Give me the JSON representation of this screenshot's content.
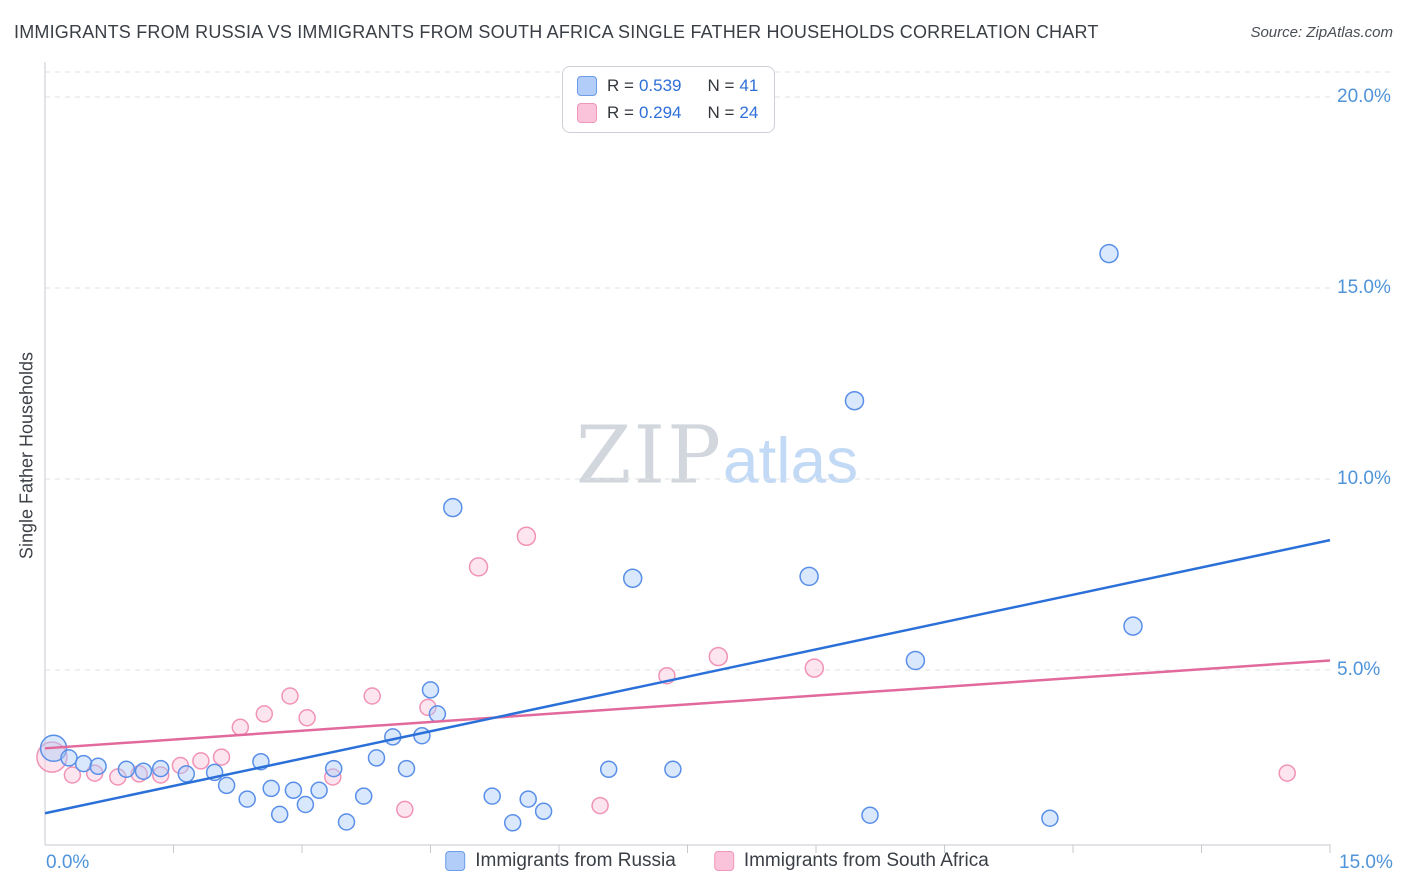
{
  "title": "IMMIGRANTS FROM RUSSIA VS IMMIGRANTS FROM SOUTH AFRICA SINGLE FATHER HOUSEHOLDS CORRELATION CHART",
  "source": "Source: ZipAtlas.com",
  "ylabel": "Single Father Households",
  "watermark": {
    "zip": "ZIP",
    "atlas": "atlas"
  },
  "axes": {
    "y_ticks": [
      "20.0%",
      "15.0%",
      "10.0%",
      "5.0%"
    ],
    "x_min_label": "0.0%",
    "x_max_label": "15.0%"
  },
  "legend_box": {
    "series": [
      {
        "r_label": "R =",
        "r": "0.539",
        "n_label": "N =",
        "n": "41"
      },
      {
        "r_label": "R =",
        "r": "0.294",
        "n_label": "N =",
        "n": "24"
      }
    ]
  },
  "bottom_legend": [
    {
      "label": "Immigrants from Russia"
    },
    {
      "label": "Immigrants from South Africa"
    }
  ],
  "chart_data": {
    "type": "scatter",
    "title": "Immigrants from Russia vs Immigrants from South Africa Single Father Households Correlation Chart",
    "xlabel": "",
    "ylabel": "Single Father Households",
    "x_axis": {
      "min_pct": 0,
      "max_pct": 15,
      "min_label": "0.0%",
      "max_label": "15.0%"
    },
    "y_axis": {
      "min_pct": 0,
      "max_pct": 21,
      "tick_labels": [
        "5.0%",
        "10.0%",
        "15.0%",
        "20.0%"
      ],
      "gridlines_pct": [
        5,
        10,
        15,
        20
      ]
    },
    "grid": "dashed horizontal",
    "legend_position": "bottom-center",
    "series": [
      {
        "name": "Immigrants from Russia",
        "R": "0.539",
        "N": "41",
        "fill": "rgba(170,205,248,0.45)",
        "stroke": "#5a8fe8",
        "trend": {
          "x1_pct": 0,
          "y1_pct": 1.25,
          "x2_pct": 15,
          "y2_pct": 8.4,
          "color": "#2a70d8"
        },
        "points_pct": [
          [
            0.1,
            2.95,
            13
          ],
          [
            0.28,
            2.7,
            8
          ],
          [
            0.45,
            2.55,
            8
          ],
          [
            0.62,
            2.48,
            8
          ],
          [
            0.95,
            2.4,
            8
          ],
          [
            1.15,
            2.35,
            8
          ],
          [
            1.35,
            2.42,
            8
          ],
          [
            1.65,
            2.28,
            8
          ],
          [
            1.98,
            2.32,
            8
          ],
          [
            2.12,
            1.98,
            8
          ],
          [
            2.36,
            1.62,
            8
          ],
          [
            2.52,
            2.6,
            8
          ],
          [
            2.64,
            1.9,
            8
          ],
          [
            2.74,
            1.22,
            8
          ],
          [
            2.9,
            1.85,
            8
          ],
          [
            3.04,
            1.48,
            8
          ],
          [
            3.2,
            1.85,
            8
          ],
          [
            3.37,
            2.42,
            8
          ],
          [
            3.52,
            1.02,
            8
          ],
          [
            3.72,
            1.7,
            8
          ],
          [
            3.87,
            2.7,
            8
          ],
          [
            4.06,
            3.25,
            8
          ],
          [
            4.22,
            2.42,
            8
          ],
          [
            4.4,
            3.28,
            8
          ],
          [
            4.5,
            4.48,
            8
          ],
          [
            4.58,
            3.85,
            8
          ],
          [
            4.76,
            9.25,
            9
          ],
          [
            5.22,
            1.7,
            8
          ],
          [
            5.46,
            1.0,
            8
          ],
          [
            5.64,
            1.62,
            8
          ],
          [
            5.82,
            1.3,
            8
          ],
          [
            6.58,
            2.4,
            8
          ],
          [
            6.86,
            7.4,
            9
          ],
          [
            7.33,
            2.4,
            8
          ],
          [
            8.92,
            7.45,
            9
          ],
          [
            9.45,
            12.05,
            9
          ],
          [
            9.63,
            1.2,
            8
          ],
          [
            10.16,
            5.25,
            9
          ],
          [
            11.73,
            1.12,
            8
          ],
          [
            12.42,
            15.9,
            9
          ],
          [
            12.7,
            6.15,
            9
          ]
        ]
      },
      {
        "name": "Immigrants from South Africa",
        "R": "0.294",
        "N": "24",
        "fill": "rgba(251,198,219,0.45)",
        "stroke": "#f193b6",
        "trend": {
          "x1_pct": 0,
          "y1_pct": 2.95,
          "x2_pct": 15,
          "y2_pct": 5.25,
          "color": "#e2699c"
        },
        "points_pct": [
          [
            0.08,
            2.72,
            15
          ],
          [
            0.32,
            2.25,
            8
          ],
          [
            0.58,
            2.3,
            8
          ],
          [
            0.85,
            2.2,
            8
          ],
          [
            1.1,
            2.28,
            8
          ],
          [
            1.35,
            2.25,
            8
          ],
          [
            1.58,
            2.5,
            8
          ],
          [
            1.82,
            2.62,
            8
          ],
          [
            2.06,
            2.72,
            8
          ],
          [
            2.28,
            3.5,
            8
          ],
          [
            2.56,
            3.85,
            8
          ],
          [
            2.86,
            4.32,
            8
          ],
          [
            3.06,
            3.75,
            8
          ],
          [
            3.36,
            2.2,
            8
          ],
          [
            3.82,
            4.32,
            8
          ],
          [
            4.2,
            1.35,
            8
          ],
          [
            4.47,
            4.02,
            8
          ],
          [
            5.06,
            7.7,
            9
          ],
          [
            5.62,
            8.5,
            9
          ],
          [
            6.48,
            1.45,
            8
          ],
          [
            7.26,
            4.85,
            8
          ],
          [
            7.86,
            5.35,
            9
          ],
          [
            8.98,
            5.05,
            9
          ],
          [
            14.5,
            2.3,
            8
          ]
        ]
      }
    ]
  }
}
